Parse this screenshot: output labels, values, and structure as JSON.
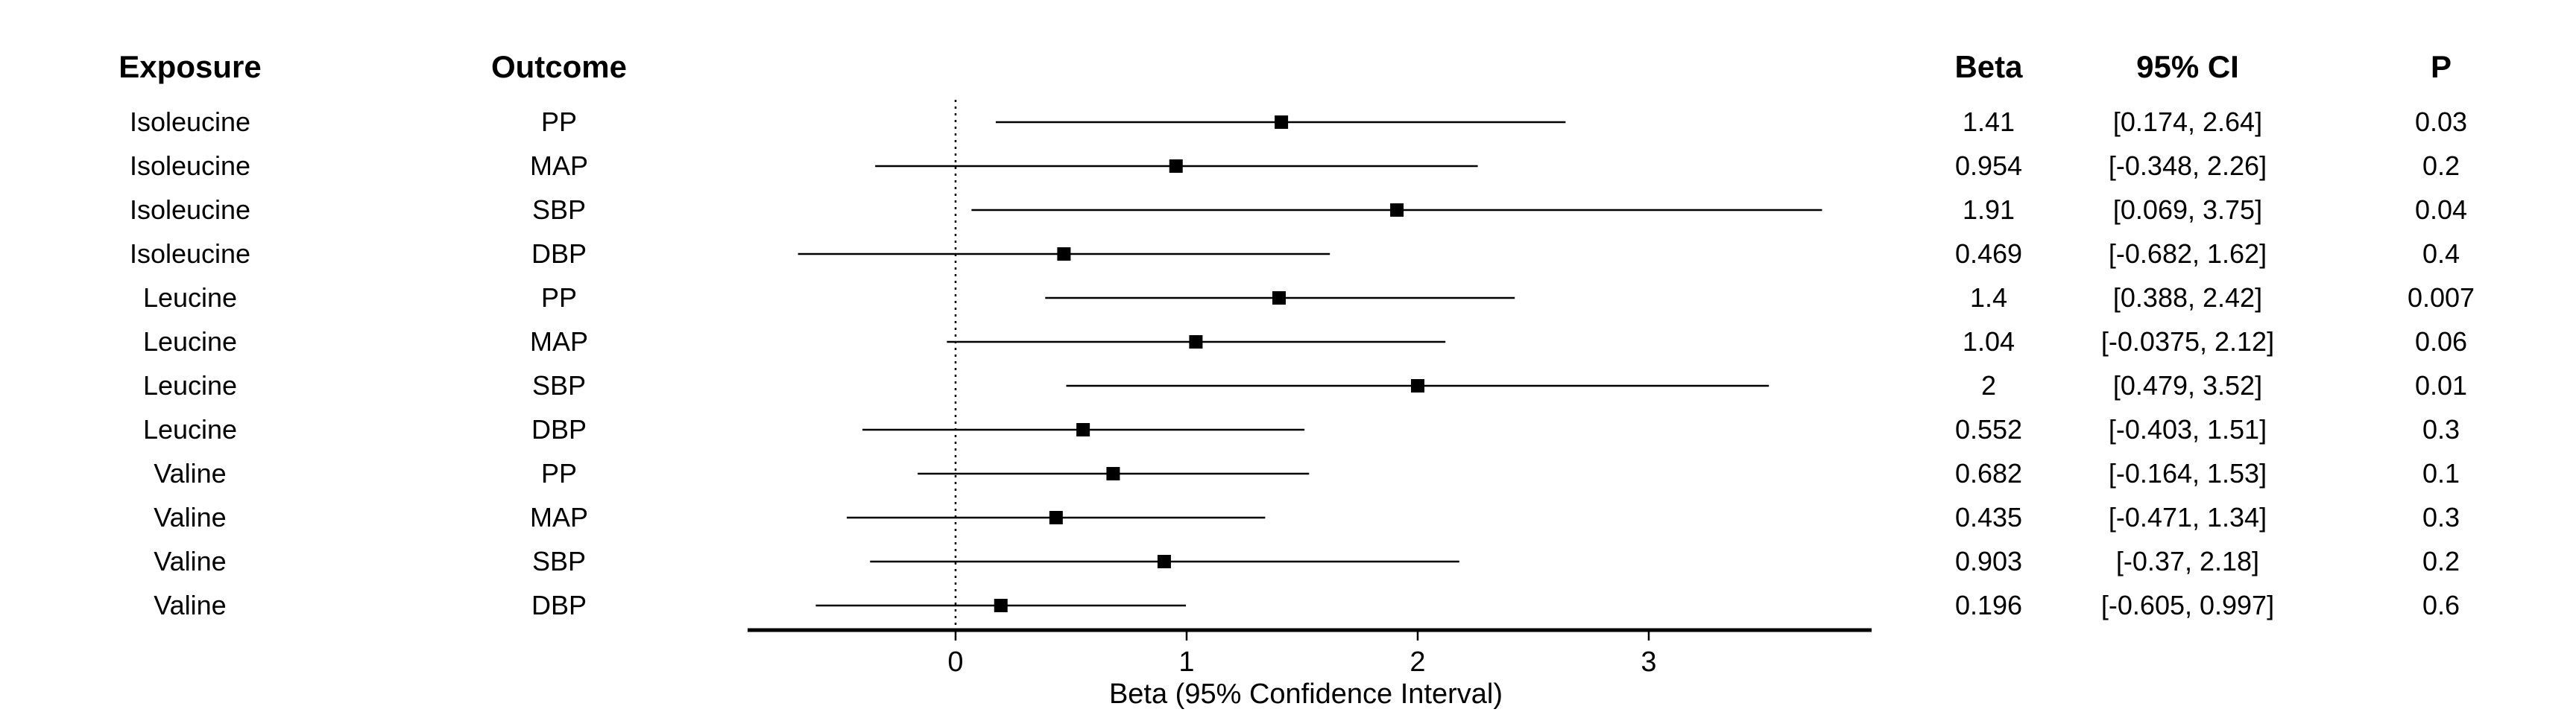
{
  "headers": {
    "exposure": "Exposure",
    "outcome": "Outcome",
    "beta": "Beta",
    "ci": "95% CI",
    "p": "P"
  },
  "rows": [
    {
      "exposure": "Isoleucine",
      "outcome": "PP",
      "beta_label": "1.41",
      "ci_label": "[0.174, 2.64]",
      "p_label": "0.03"
    },
    {
      "exposure": "Isoleucine",
      "outcome": "MAP",
      "beta_label": "0.954",
      "ci_label": "[-0.348, 2.26]",
      "p_label": "0.2"
    },
    {
      "exposure": "Isoleucine",
      "outcome": "SBP",
      "beta_label": "1.91",
      "ci_label": "[0.069, 3.75]",
      "p_label": "0.04"
    },
    {
      "exposure": "Isoleucine",
      "outcome": "DBP",
      "beta_label": "0.469",
      "ci_label": "[-0.682, 1.62]",
      "p_label": "0.4"
    },
    {
      "exposure": "Leucine",
      "outcome": "PP",
      "beta_label": "1.4",
      "ci_label": "[0.388, 2.42]",
      "p_label": "0.007"
    },
    {
      "exposure": "Leucine",
      "outcome": "MAP",
      "beta_label": "1.04",
      "ci_label": "[-0.0375, 2.12]",
      "p_label": "0.06"
    },
    {
      "exposure": "Leucine",
      "outcome": "SBP",
      "beta_label": "2",
      "ci_label": "[0.479, 3.52]",
      "p_label": "0.01"
    },
    {
      "exposure": "Leucine",
      "outcome": "DBP",
      "beta_label": "0.552",
      "ci_label": "[-0.403, 1.51]",
      "p_label": "0.3"
    },
    {
      "exposure": "Valine",
      "outcome": "PP",
      "beta_label": "0.682",
      "ci_label": "[-0.164, 1.53]",
      "p_label": "0.1"
    },
    {
      "exposure": "Valine",
      "outcome": "MAP",
      "beta_label": "0.435",
      "ci_label": "[-0.471, 1.34]",
      "p_label": "0.3"
    },
    {
      "exposure": "Valine",
      "outcome": "SBP",
      "beta_label": "0.903",
      "ci_label": "[-0.37, 2.18]",
      "p_label": "0.2"
    },
    {
      "exposure": "Valine",
      "outcome": "DBP",
      "beta_label": "0.196",
      "ci_label": "[-0.605, 0.997]",
      "p_label": "0.6"
    }
  ],
  "chart_data": {
    "type": "forest",
    "xlabel": "Beta (95% Confidence Interval)",
    "xlim": [
      -0.9,
      3.97
    ],
    "xticks": [
      0,
      1,
      2,
      3
    ],
    "reference_line": 0,
    "marker": "square",
    "marker_color": "#000000",
    "line_color": "#000000",
    "points": [
      {
        "beta": 1.41,
        "lower": 0.174,
        "upper": 2.64
      },
      {
        "beta": 0.954,
        "lower": -0.348,
        "upper": 2.26
      },
      {
        "beta": 1.91,
        "lower": 0.069,
        "upper": 3.75
      },
      {
        "beta": 0.469,
        "lower": -0.682,
        "upper": 1.62
      },
      {
        "beta": 1.4,
        "lower": 0.388,
        "upper": 2.42
      },
      {
        "beta": 1.04,
        "lower": -0.0375,
        "upper": 2.12
      },
      {
        "beta": 2,
        "lower": 0.479,
        "upper": 3.52
      },
      {
        "beta": 0.552,
        "lower": -0.403,
        "upper": 1.51
      },
      {
        "beta": 0.682,
        "lower": -0.164,
        "upper": 1.53
      },
      {
        "beta": 0.435,
        "lower": -0.471,
        "upper": 1.34
      },
      {
        "beta": 0.903,
        "lower": -0.37,
        "upper": 2.18
      },
      {
        "beta": 0.196,
        "lower": -0.605,
        "upper": 0.997
      }
    ]
  }
}
